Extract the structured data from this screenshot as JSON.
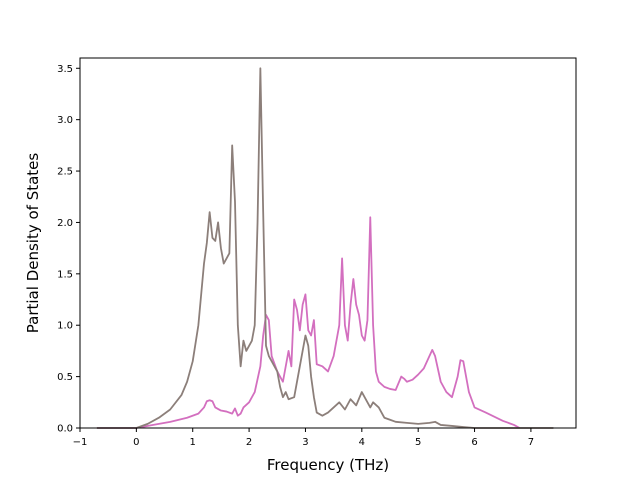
{
  "chart_data": {
    "type": "line",
    "title": "",
    "xlabel": "Frequency (THz)",
    "ylabel": "Partial Density of States",
    "xlim": [
      -1.0,
      7.8
    ],
    "ylim": [
      0.0,
      3.6
    ],
    "xticks": [
      -1,
      0,
      1,
      2,
      3,
      4,
      5,
      6,
      7
    ],
    "xtick_labels": [
      "−1",
      "0",
      "1",
      "2",
      "3",
      "4",
      "5",
      "6",
      "7"
    ],
    "yticks": [
      0.0,
      0.5,
      1.0,
      1.5,
      2.0,
      2.5,
      3.0,
      3.5
    ],
    "ytick_labels": [
      "0.0",
      "0.5",
      "1.0",
      "1.5",
      "2.0",
      "2.5",
      "3.0",
      "3.5"
    ],
    "grid": false,
    "legend": "none",
    "series": [
      {
        "color": "#d36fbf",
        "x": [
          -0.7,
          0.0,
          0.3,
          0.6,
          0.9,
          1.1,
          1.2,
          1.25,
          1.3,
          1.35,
          1.4,
          1.5,
          1.6,
          1.7,
          1.75,
          1.8,
          1.85,
          1.9,
          2.0,
          2.1,
          2.2,
          2.25,
          2.3,
          2.35,
          2.4,
          2.5,
          2.6,
          2.7,
          2.75,
          2.8,
          2.85,
          2.9,
          2.95,
          3.0,
          3.05,
          3.1,
          3.15,
          3.2,
          3.3,
          3.4,
          3.5,
          3.6,
          3.65,
          3.7,
          3.75,
          3.8,
          3.85,
          3.9,
          3.95,
          4.0,
          4.05,
          4.1,
          4.15,
          4.2,
          4.25,
          4.3,
          4.4,
          4.5,
          4.6,
          4.7,
          4.75,
          4.8,
          4.9,
          5.0,
          5.1,
          5.2,
          5.25,
          5.3,
          5.4,
          5.5,
          5.6,
          5.7,
          5.75,
          5.8,
          5.9,
          6.0,
          6.2,
          6.5,
          6.7,
          6.8
        ],
        "y": [
          0.0,
          0.0,
          0.03,
          0.06,
          0.1,
          0.14,
          0.2,
          0.26,
          0.27,
          0.26,
          0.2,
          0.17,
          0.16,
          0.14,
          0.19,
          0.12,
          0.14,
          0.2,
          0.25,
          0.35,
          0.6,
          0.9,
          1.1,
          1.05,
          0.7,
          0.55,
          0.45,
          0.75,
          0.6,
          1.25,
          1.15,
          0.95,
          1.2,
          1.3,
          0.95,
          0.9,
          1.05,
          0.62,
          0.6,
          0.55,
          0.7,
          1.0,
          1.65,
          1.0,
          0.85,
          1.2,
          1.45,
          1.2,
          1.1,
          0.9,
          0.85,
          1.05,
          2.05,
          1.0,
          0.55,
          0.45,
          0.4,
          0.38,
          0.37,
          0.5,
          0.48,
          0.45,
          0.47,
          0.52,
          0.58,
          0.7,
          0.76,
          0.7,
          0.45,
          0.35,
          0.3,
          0.5,
          0.66,
          0.65,
          0.35,
          0.2,
          0.15,
          0.07,
          0.03,
          0.0
        ]
      },
      {
        "color": "#8c7f7a",
        "x": [
          -0.7,
          0.0,
          0.2,
          0.4,
          0.6,
          0.8,
          0.9,
          1.0,
          1.1,
          1.2,
          1.25,
          1.3,
          1.35,
          1.4,
          1.45,
          1.5,
          1.55,
          1.6,
          1.65,
          1.7,
          1.75,
          1.8,
          1.85,
          1.9,
          1.95,
          2.0,
          2.05,
          2.1,
          2.15,
          2.2,
          2.25,
          2.3,
          2.35,
          2.4,
          2.45,
          2.5,
          2.55,
          2.6,
          2.65,
          2.7,
          2.8,
          2.9,
          3.0,
          3.05,
          3.1,
          3.15,
          3.2,
          3.3,
          3.4,
          3.5,
          3.6,
          3.7,
          3.8,
          3.9,
          4.0,
          4.1,
          4.15,
          4.2,
          4.3,
          4.4,
          4.5,
          4.6,
          4.8,
          5.0,
          5.2,
          5.3,
          5.4,
          5.6,
          5.8,
          6.0,
          6.5,
          7.0,
          7.4
        ],
        "y": [
          0.0,
          0.0,
          0.04,
          0.1,
          0.18,
          0.32,
          0.45,
          0.65,
          1.0,
          1.6,
          1.8,
          2.1,
          1.85,
          1.82,
          2.0,
          1.75,
          1.6,
          1.65,
          1.7,
          2.75,
          2.2,
          1.0,
          0.6,
          0.85,
          0.75,
          0.8,
          0.85,
          1.0,
          2.0,
          3.5,
          2.1,
          0.8,
          0.7,
          0.65,
          0.6,
          0.55,
          0.4,
          0.3,
          0.35,
          0.28,
          0.3,
          0.6,
          0.9,
          0.8,
          0.5,
          0.3,
          0.15,
          0.12,
          0.15,
          0.2,
          0.25,
          0.18,
          0.28,
          0.22,
          0.35,
          0.25,
          0.2,
          0.25,
          0.2,
          0.1,
          0.08,
          0.06,
          0.05,
          0.04,
          0.05,
          0.06,
          0.03,
          0.02,
          0.01,
          0.0,
          0.0,
          0.0,
          0.0
        ]
      }
    ]
  }
}
